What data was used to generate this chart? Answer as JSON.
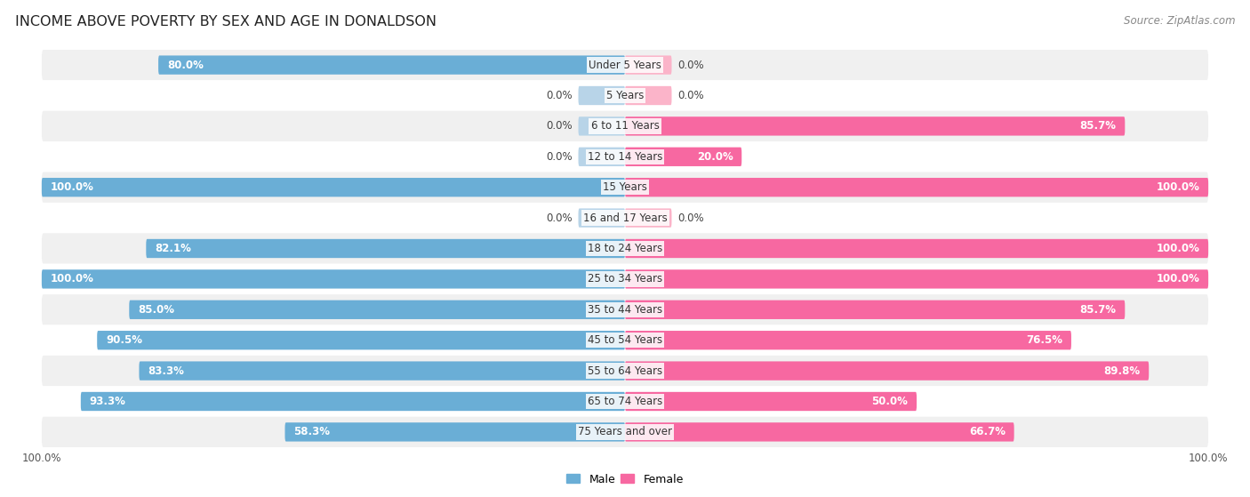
{
  "title": "INCOME ABOVE POVERTY BY SEX AND AGE IN DONALDSON",
  "source": "Source: ZipAtlas.com",
  "categories": [
    "Under 5 Years",
    "5 Years",
    "6 to 11 Years",
    "12 to 14 Years",
    "15 Years",
    "16 and 17 Years",
    "18 to 24 Years",
    "25 to 34 Years",
    "35 to 44 Years",
    "45 to 54 Years",
    "55 to 64 Years",
    "65 to 74 Years",
    "75 Years and over"
  ],
  "male_values": [
    80.0,
    0.0,
    0.0,
    0.0,
    100.0,
    0.0,
    82.1,
    100.0,
    85.0,
    90.5,
    83.3,
    93.3,
    58.3
  ],
  "female_values": [
    0.0,
    0.0,
    85.7,
    20.0,
    100.0,
    0.0,
    100.0,
    100.0,
    85.7,
    76.5,
    89.8,
    50.0,
    66.7
  ],
  "male_color": "#6aaed6",
  "female_color": "#f768a1",
  "male_light_color": "#b8d4e8",
  "female_light_color": "#fbb4c9",
  "bar_height": 0.62,
  "row_bg_odd": "#f0f0f0",
  "row_bg_even": "#ffffff",
  "title_fontsize": 11.5,
  "label_fontsize": 8.5,
  "value_fontsize": 8.5,
  "source_fontsize": 8.5
}
